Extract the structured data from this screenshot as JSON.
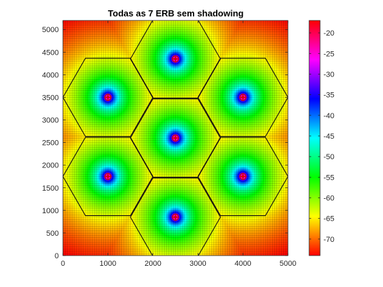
{
  "chart_data": {
    "type": "heatmap",
    "title": "Todas as 7 ERB sem shadowing",
    "xlabel": "",
    "ylabel": "",
    "xlim": [
      0,
      5000
    ],
    "ylim": [
      0,
      5200
    ],
    "x_ticks": [
      0,
      1000,
      2000,
      3000,
      4000,
      5000
    ],
    "y_ticks": [
      0,
      500,
      1000,
      1500,
      2000,
      2500,
      3000,
      3500,
      4000,
      4500,
      5000
    ],
    "grid_step": 50,
    "colorbar": {
      "range": [
        -74,
        -17
      ],
      "ticks": [
        -20,
        -25,
        -30,
        -35,
        -40,
        -45,
        -50,
        -55,
        -60,
        -65,
        -70
      ],
      "colormap": [
        "#ff0000",
        "#ffff00",
        "#00ff00",
        "#00ffff",
        "#0000ff",
        "#ff00ff",
        "#ff0000"
      ],
      "direction": "top-high"
    },
    "stations": [
      {
        "x": 2500,
        "y": 2600
      },
      {
        "x": 2500,
        "y": 4350
      },
      {
        "x": 2500,
        "y": 850
      },
      {
        "x": 1000,
        "y": 3500
      },
      {
        "x": 4000,
        "y": 3500
      },
      {
        "x": 1000,
        "y": 1750
      },
      {
        "x": 4000,
        "y": 1750
      }
    ],
    "hexagon_radius": 1000,
    "station_marker": "red-circle-cross"
  }
}
